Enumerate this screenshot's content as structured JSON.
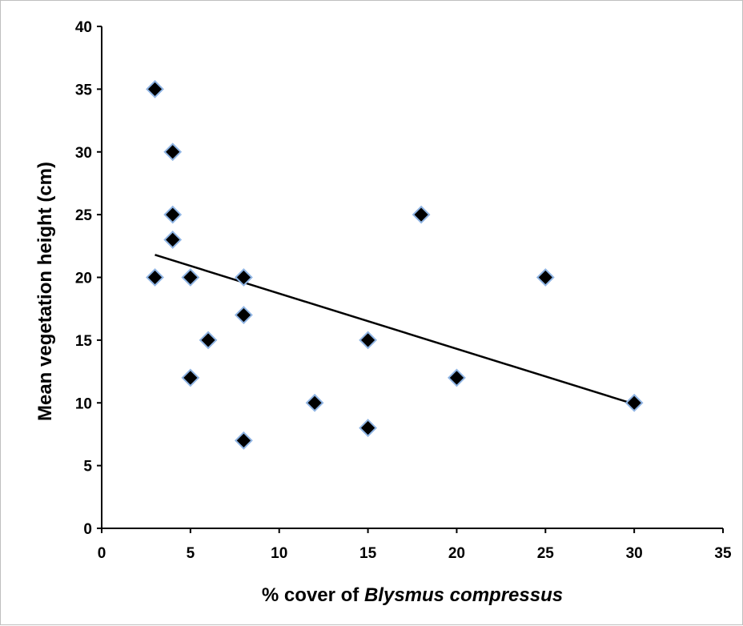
{
  "chart_data": {
    "type": "scatter",
    "title": "",
    "xlabel_prefix": "% cover of ",
    "xlabel_species": "Blysmus compressus",
    "ylabel": "Mean vegetation height (cm)",
    "xlim": [
      0,
      35
    ],
    "ylim": [
      0,
      40
    ],
    "xticks": [
      0,
      5,
      10,
      15,
      20,
      25,
      30,
      35
    ],
    "yticks": [
      0,
      5,
      10,
      15,
      20,
      25,
      30,
      35,
      40
    ],
    "grid": false,
    "legend": "none",
    "marker": "diamond",
    "points": [
      {
        "x": 3,
        "y": 35
      },
      {
        "x": 4,
        "y": 30
      },
      {
        "x": 4,
        "y": 25
      },
      {
        "x": 4,
        "y": 23
      },
      {
        "x": 3,
        "y": 20
      },
      {
        "x": 5,
        "y": 20
      },
      {
        "x": 8,
        "y": 20
      },
      {
        "x": 8,
        "y": 17
      },
      {
        "x": 6,
        "y": 15
      },
      {
        "x": 5,
        "y": 12
      },
      {
        "x": 8,
        "y": 7
      },
      {
        "x": 12,
        "y": 10
      },
      {
        "x": 15,
        "y": 15
      },
      {
        "x": 15,
        "y": 8
      },
      {
        "x": 18,
        "y": 25
      },
      {
        "x": 20,
        "y": 12
      },
      {
        "x": 25,
        "y": 20
      },
      {
        "x": 30,
        "y": 10
      }
    ],
    "trendline": {
      "type": "linear",
      "x_start": 3,
      "y_start": 21.8,
      "x_end": 30,
      "y_end": 9.9
    },
    "colors": {
      "marker_fill": "#000000",
      "marker_edge": "#8fb4e3",
      "axis": "#000000",
      "trendline": "#000000"
    }
  }
}
